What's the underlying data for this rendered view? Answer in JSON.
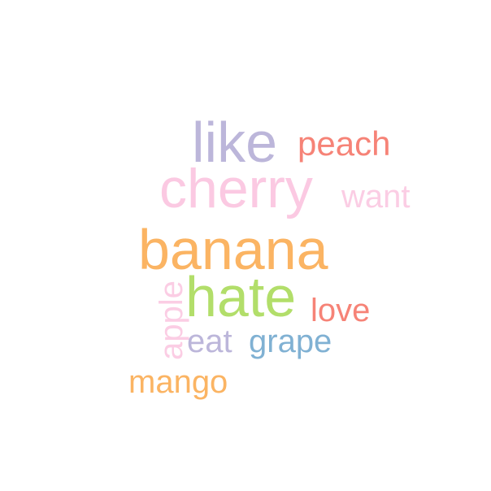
{
  "words": [
    {
      "text": "like",
      "color": "#bcb6da"
    },
    {
      "text": "peach",
      "color": "#f68377"
    },
    {
      "text": "cherry",
      "color": "#fbc9e2"
    },
    {
      "text": "want",
      "color": "#fbcde4"
    },
    {
      "text": "banana",
      "color": "#fbb463"
    },
    {
      "text": "apple",
      "color": "#fbcde4"
    },
    {
      "text": "hate",
      "color": "#b2de6a"
    },
    {
      "text": "love",
      "color": "#f68377"
    },
    {
      "text": "eat",
      "color": "#bcb6da"
    },
    {
      "text": "grape",
      "color": "#80b1d3"
    },
    {
      "text": "mango",
      "color": "#fbb463"
    }
  ]
}
